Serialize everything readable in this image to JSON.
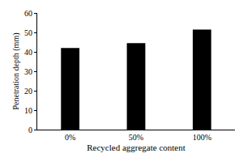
{
  "chart_data": {
    "type": "bar",
    "xlabel": "Recycled aggregate content",
    "ylabel": "Penetration depth (mm)",
    "categories": [
      "0%",
      "50%",
      "100%"
    ],
    "values": [
      42,
      44.5,
      51.5
    ],
    "color": "#000000",
    "ylim": [
      0,
      60
    ],
    "yticks": [
      0,
      10,
      20,
      30,
      40,
      50,
      60
    ],
    "grid": false
  }
}
